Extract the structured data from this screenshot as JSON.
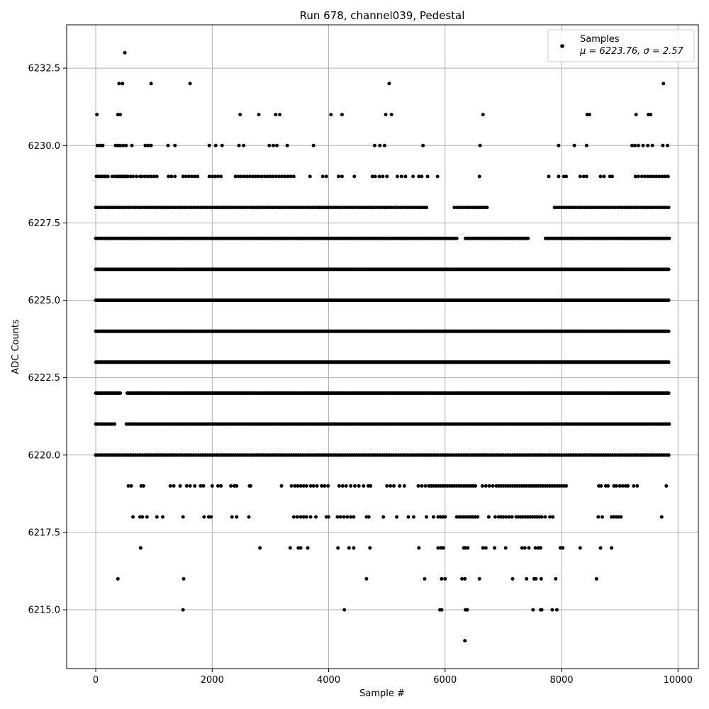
{
  "chart_data": {
    "type": "scatter",
    "title": "Run 678, channel039, Pedestal",
    "xlabel": "Sample #",
    "ylabel": "ADC Counts",
    "xlim": [
      -500,
      10350
    ],
    "ylim": [
      6213.1,
      6233.9
    ],
    "xticks": [
      0,
      2000,
      4000,
      6000,
      8000,
      10000
    ],
    "xtick_labels": [
      "0",
      "2000",
      "4000",
      "6000",
      "8000",
      "10000"
    ],
    "yticks": [
      6215.0,
      6217.5,
      6220.0,
      6222.5,
      6225.0,
      6227.5,
      6230.0,
      6232.5
    ],
    "ytick_labels": [
      "6215.0",
      "6217.5",
      "6220.0",
      "6222.5",
      "6225.0",
      "6227.5",
      "6230.0",
      "6232.5"
    ],
    "grid": true,
    "legend_position": "top-right",
    "marker_color": "#000000",
    "series": [
      {
        "name": "Samples",
        "stat_label": "μ = 6223.76, σ = 2.57",
        "levels": [
          {
            "y": 6233,
            "x": [
              500
            ]
          },
          {
            "y": 6232,
            "x": [
              400,
              460,
              950,
              1620,
              5040,
              9750
            ]
          },
          {
            "y": 6231,
            "x": [
              20,
              380,
              420,
              2480,
              2800,
              3090,
              3160,
              4040,
              4230,
              4980,
              5080,
              6650,
              8440,
              8480,
              9280,
              9490,
              9530
            ]
          },
          {
            "y": 6230,
            "x": [
              30,
              80,
              120,
              340,
              380,
              420,
              470,
              520,
              620,
              850,
              900,
              950,
              1240,
              1360,
              1950,
              2060,
              2170,
              2460,
              2540,
              2980,
              3050,
              3110,
              3290,
              3740,
              4790,
              4880,
              4960,
              5620,
              6600,
              7950,
              8220,
              8430,
              9210,
              9260,
              9320,
              9400,
              9480,
              9560,
              9740,
              9820
            ]
          },
          {
            "y": 6229,
            "x": [
              10,
              40,
              70,
              110,
              150,
              180,
              210,
              280,
              330,
              370,
              400,
              430,
              460,
              490,
              520,
              550,
              600,
              640,
              700,
              760,
              800,
              850,
              900,
              950,
              1000,
              1050,
              1250,
              1300,
              1360,
              1500,
              1550,
              1600,
              1650,
              1700,
              1750,
              1950,
              2000,
              2050,
              2100,
              2150,
              2400,
              2450,
              2500,
              2550,
              2600,
              2650,
              2700,
              2750,
              2800,
              2850,
              2900,
              2950,
              3000,
              3050,
              3100,
              3150,
              3200,
              3250,
              3300,
              3350,
              3400,
              3680,
              3900,
              3960,
              4170,
              4230,
              4440,
              4750,
              4800,
              4870,
              4930,
              5000,
              5180,
              5250,
              5320,
              5450,
              5550,
              5600,
              5700,
              5870,
              6590,
              7780,
              7950,
              8040,
              8080,
              8320,
              8380,
              8430,
              8670,
              8730,
              8830,
              8870,
              9270,
              9320,
              9380,
              9430,
              9480,
              9530,
              9580,
              9630,
              9680,
              9730,
              9780,
              9830
            ]
          }
        ],
        "bands": [
          {
            "y": 6228,
            "x_start": 0,
            "x_end": 9850,
            "step": 40,
            "gaps": [
              [
                5720,
                6130
              ],
              [
                6760,
                7850
              ]
            ]
          },
          {
            "y": 6227,
            "x_start": 0,
            "x_end": 9850,
            "step": 25,
            "gaps": [
              [
                6220,
                6330
              ],
              [
                7450,
                7700
              ]
            ]
          },
          {
            "y": 6226,
            "x_start": 0,
            "x_end": 9850,
            "step": 20,
            "gaps": []
          },
          {
            "y": 6225,
            "x_start": 0,
            "x_end": 9850,
            "step": 15,
            "gaps": []
          },
          {
            "y": 6224,
            "x_start": 0,
            "x_end": 9850,
            "step": 15,
            "gaps": []
          },
          {
            "y": 6223,
            "x_start": 0,
            "x_end": 9850,
            "step": 15,
            "gaps": []
          },
          {
            "y": 6222,
            "x_start": 0,
            "x_end": 9850,
            "step": 20,
            "gaps": [
              [
                440,
                520
              ]
            ]
          },
          {
            "y": 6221,
            "x_start": 0,
            "x_end": 9850,
            "step": 25,
            "gaps": [
              [
                330,
                520
              ]
            ]
          },
          {
            "y": 6220,
            "x_start": 0,
            "x_end": 9850,
            "step": 40,
            "gaps": []
          }
        ],
        "sparse_levels": [
          {
            "y": 6219,
            "x": [
              560,
              610,
              780,
              820,
              1280,
              1340,
              1450,
              1560,
              1620,
              1700,
              1800,
              1850,
              2000,
              2100,
              2150,
              2320,
              2380,
              2420,
              2640,
              2660,
              3190,
              3360,
              3420,
              3470,
              3520,
              3570,
              3620,
              3690,
              3740,
              3800,
              3880,
              3930,
              3990,
              4180,
              4240,
              4300,
              4380,
              4450,
              4520,
              4600,
              4680,
              4720,
              5000,
              5060,
              5120,
              5220,
              5300,
              5540,
              5600,
              5660,
              5720,
              5760,
              5800,
              5840,
              5880,
              5920,
              5960,
              6000,
              6040,
              6080,
              6120,
              6160,
              6200,
              6240,
              6280,
              6320,
              6360,
              6400,
              6440,
              6480,
              6520,
              6640,
              6700,
              6760,
              6820,
              6880,
              6920,
              6960,
              7000,
              7040,
              7080,
              7120,
              7160,
              7200,
              7240,
              7280,
              7320,
              7360,
              7400,
              7440,
              7480,
              7520,
              7560,
              7600,
              7640,
              7680,
              7720,
              7760,
              7800,
              7840,
              7880,
              7920,
              7960,
              8000,
              8040,
              8080,
              8640,
              8680,
              8760,
              8800,
              8900,
              8940,
              9000,
              9050,
              9100,
              9140,
              9240,
              9300,
              9800
            ]
          },
          {
            "y": 6218,
            "x": [
              640,
              760,
              800,
              880,
              1050,
              1150,
              1500,
              1860,
              1940,
              1980,
              2340,
              2420,
              2630,
              3400,
              3460,
              3520,
              3570,
              3620,
              3690,
              3780,
              3960,
              4000,
              4150,
              4200,
              4260,
              4320,
              4380,
              4430,
              4650,
              4690,
              4940,
              5170,
              5370,
              5460,
              5680,
              5800,
              5880,
              5920,
              5960,
              6000,
              6200,
              6240,
              6280,
              6320,
              6360,
              6400,
              6440,
              6480,
              6520,
              6560,
              6750,
              6860,
              6920,
              6960,
              7000,
              7050,
              7100,
              7150,
              7220,
              7260,
              7300,
              7340,
              7380,
              7420,
              7460,
              7500,
              7540,
              7580,
              7620,
              7660,
              7720,
              7800,
              7850,
              8630,
              8700,
              8860,
              8900,
              8940,
              8980,
              9020,
              9720
            ]
          },
          {
            "y": 6217,
            "x": [
              770,
              2820,
              3340,
              3480,
              3520,
              3640,
              4160,
              4350,
              4430,
              4710,
              5550,
              5880,
              5930,
              5970,
              6320,
              6350,
              6390,
              6650,
              6700,
              6850,
              7040,
              7320,
              7370,
              7440,
              7550,
              7600,
              7640,
              7980,
              8020,
              8320,
              8670,
              8860
            ]
          },
          {
            "y": 6216,
            "x": [
              380,
              1510,
              4650,
              5650,
              5940,
              6000,
              6290,
              6340,
              6590,
              7160,
              7400,
              7530,
              7560,
              7650,
              7900,
              8600
            ]
          },
          {
            "y": 6215,
            "x": [
              1500,
              4270,
              5910,
              5940,
              6350,
              6380,
              7510,
              7640,
              7660,
              7840,
              7920
            ]
          },
          {
            "y": 6214,
            "x": [
              6340
            ]
          }
        ]
      }
    ]
  }
}
